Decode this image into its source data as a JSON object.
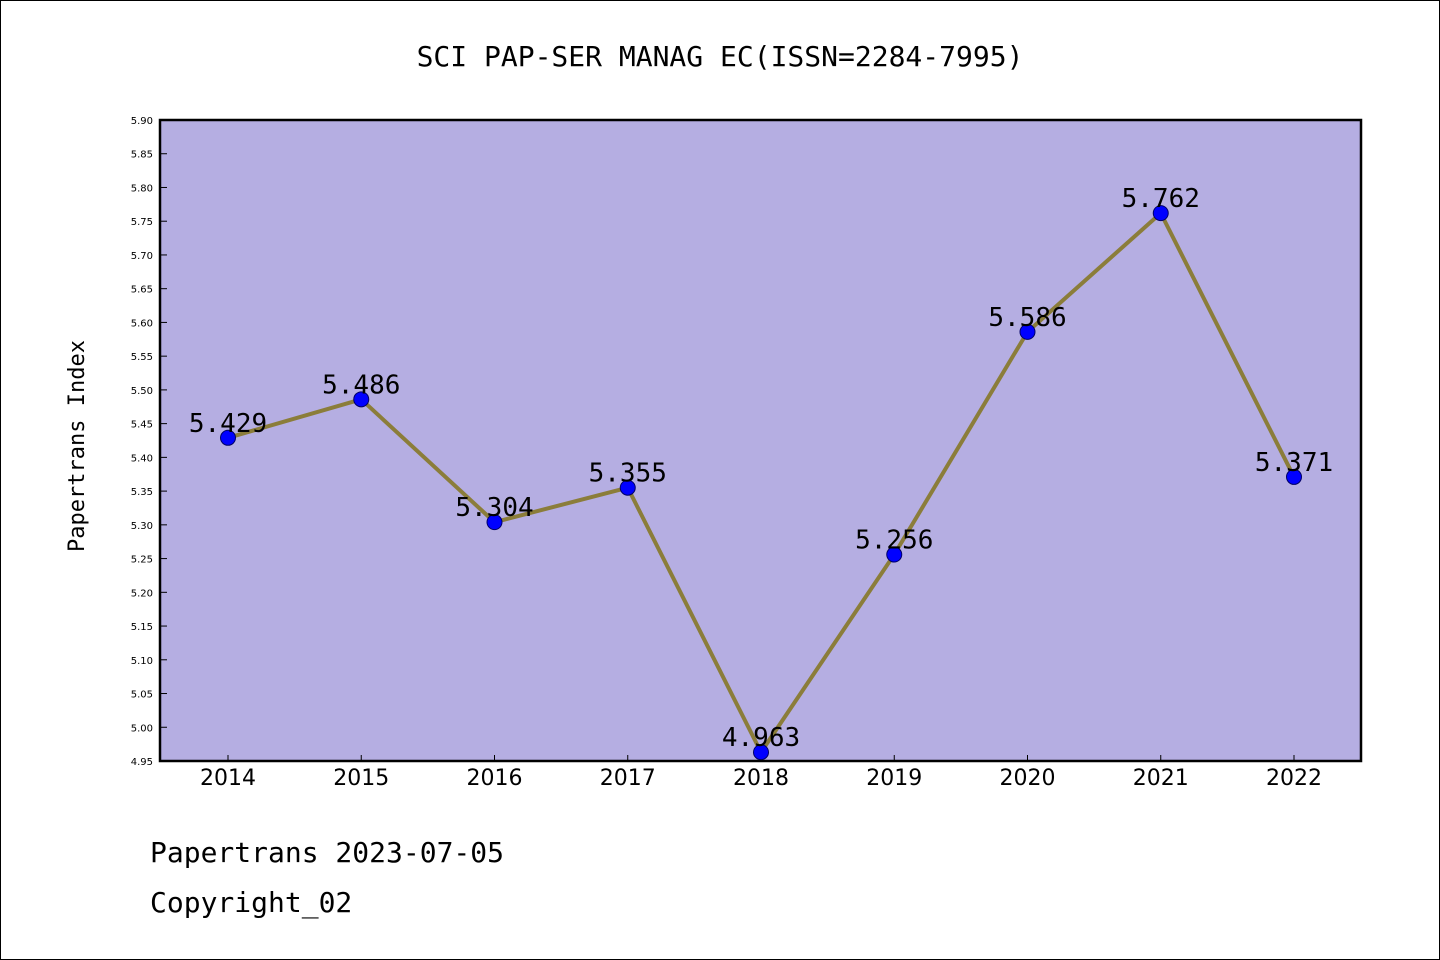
{
  "chart_data": {
    "type": "line",
    "title": "SCI PAP-SER MANAG EC(ISSN=2284-7995)",
    "xlabel": "",
    "ylabel": "Papertrans Index",
    "categories": [
      "2014",
      "2015",
      "2016",
      "2017",
      "2018",
      "2019",
      "2020",
      "2021",
      "2022"
    ],
    "series": [
      {
        "values": [
          5.429,
          5.486,
          5.304,
          5.355,
          4.963,
          5.256,
          5.586,
          5.762,
          5.371
        ],
        "labels": [
          "5.429",
          "5.486",
          "5.304",
          "5.355",
          "4.963",
          "5.256",
          "5.586",
          "5.762",
          "5.371"
        ]
      }
    ],
    "ylim": [
      4.95,
      5.9
    ],
    "yticks": [
      "4.95",
      "5.00",
      "5.05",
      "5.10",
      "5.15",
      "5.20",
      "5.25",
      "5.30",
      "5.35",
      "5.40",
      "5.45",
      "5.50",
      "5.55",
      "5.60",
      "5.65",
      "5.70",
      "5.75",
      "5.80",
      "5.85",
      "5.90"
    ],
    "grid": false,
    "colors": {
      "plot_background": "#b5aee2",
      "line": "#8b7d3a",
      "marker": "#0000ff"
    }
  },
  "footer": {
    "source": "Papertrans 2023-07-05",
    "copyright": "Copyright_02"
  }
}
